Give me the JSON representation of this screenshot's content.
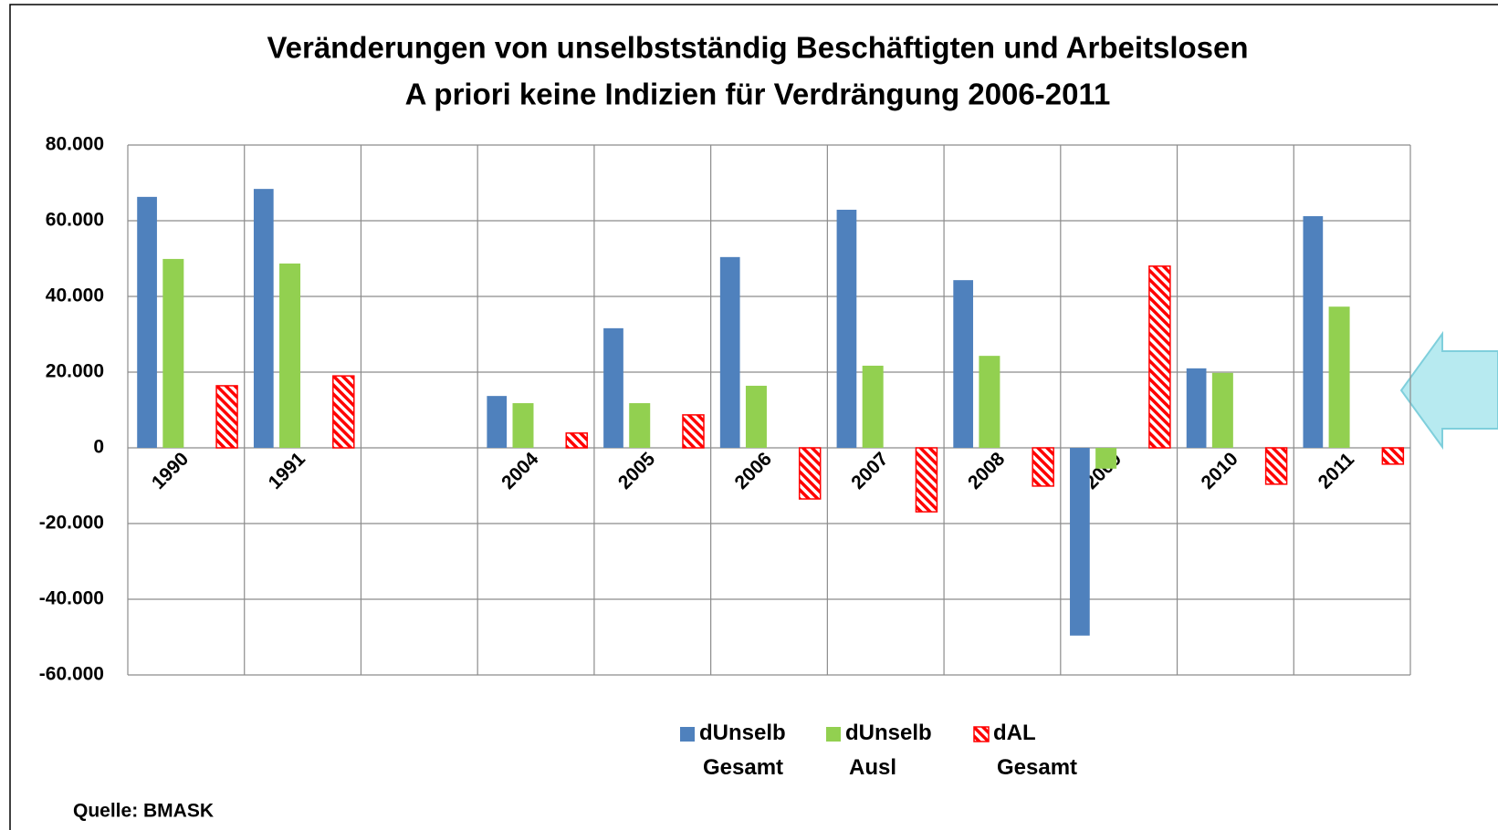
{
  "chart_data": {
    "type": "bar",
    "title": "Veränderungen von unselbstständig Beschäftigten und Arbeitslosen",
    "subtitle": "A priori keine Indizien für Verdrängung 2006-2011",
    "source": "Quelle: BMASK",
    "categories": [
      "1990",
      "1991",
      null,
      "2004",
      "2005",
      "2006",
      "2007",
      "2008",
      "2009",
      "2010",
      "2011"
    ],
    "series": [
      {
        "name": "dUnselb Gesamt",
        "color": "#4f81bd",
        "values": [
          66300,
          68400,
          null,
          13700,
          31600,
          50400,
          62900,
          44300,
          -49600,
          21000,
          61200
        ]
      },
      {
        "name": "dUnselb Ausl",
        "color": "#92d050",
        "values": [
          49900,
          48700,
          null,
          11800,
          11800,
          16400,
          21700,
          24300,
          -5500,
          19800,
          37300
        ]
      },
      {
        "name": "dAL Gesamt",
        "color": "#ff0000",
        "hatched": true,
        "values": [
          16400,
          19000,
          null,
          3900,
          8700,
          -13500,
          -16900,
          -10100,
          48000,
          -9600,
          -4300
        ]
      }
    ],
    "ylim": [
      -60000,
      80000
    ],
    "yticks": [
      {
        "value": -60000,
        "label": "-60.000"
      },
      {
        "value": -40000,
        "label": "-40.000"
      },
      {
        "value": -20000,
        "label": "-20.000"
      },
      0,
      {
        "value": 20000,
        "label": "20.000"
      },
      {
        "value": 40000,
        "label": "40.000"
      },
      {
        "value": 60000,
        "label": "60.000"
      },
      {
        "value": 80000,
        "label": "80.000"
      }
    ],
    "grid": true
  }
}
